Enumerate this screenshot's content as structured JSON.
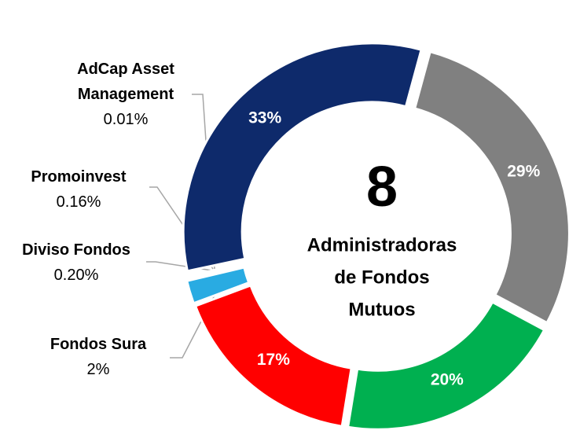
{
  "chart_data": {
    "type": "donut",
    "categories": [
      null,
      null,
      null,
      null,
      "Fondos Sura",
      "Diviso Fondos",
      "Promoinvest",
      "AdCap Asset Management"
    ],
    "values": [
      33,
      29,
      20,
      17,
      2,
      0.2,
      0.16,
      0.01
    ],
    "value_labels": [
      "33%",
      "29%",
      "20%",
      "17%",
      "2%",
      "0.20%",
      "0.16%",
      "0.01%"
    ],
    "colors": [
      "#0e2a6b",
      "#808080",
      "#00b050",
      "#ff0000",
      "#29abe2",
      "#29abe2",
      "#bfbfbf",
      "#bfbfbf"
    ],
    "center_number": "8",
    "center_lines": [
      "Administradoras",
      "de Fondos",
      "Mutuos"
    ]
  }
}
